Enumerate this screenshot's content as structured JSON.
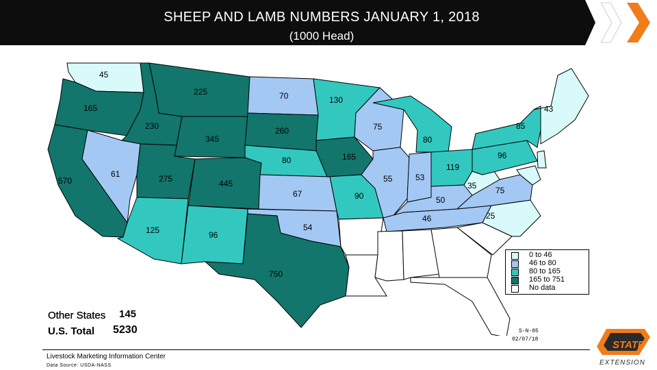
{
  "header": {
    "title": "SHEEP AND LAMB NUMBERS JANUARY 1, 2018",
    "subtitle": "(1000 Head)"
  },
  "map": {
    "colors": {
      "0_to_46": "#d8fafa",
      "46_to_80": "#a4c8f4",
      "80_to_165": "#32c8c0",
      "165_to_751": "#12766c",
      "no_data": "#ffffff"
    },
    "states": [
      {
        "id": "WA",
        "label": "45",
        "cat": "0_to_46"
      },
      {
        "id": "OR",
        "label": "165",
        "cat": "165_to_751"
      },
      {
        "id": "CA",
        "label": "570",
        "cat": "165_to_751"
      },
      {
        "id": "ID",
        "label": "230",
        "cat": "165_to_751"
      },
      {
        "id": "NV",
        "label": "61",
        "cat": "46_to_80"
      },
      {
        "id": "MT",
        "label": "225",
        "cat": "165_to_751"
      },
      {
        "id": "WY",
        "label": "345",
        "cat": "165_to_751"
      },
      {
        "id": "UT",
        "label": "275",
        "cat": "165_to_751"
      },
      {
        "id": "AZ",
        "label": "125",
        "cat": "80_to_165"
      },
      {
        "id": "CO",
        "label": "445",
        "cat": "165_to_751"
      },
      {
        "id": "NM",
        "label": "96",
        "cat": "80_to_165"
      },
      {
        "id": "ND",
        "label": "70",
        "cat": "46_to_80"
      },
      {
        "id": "SD",
        "label": "260",
        "cat": "165_to_751"
      },
      {
        "id": "NE",
        "label": "80",
        "cat": "80_to_165"
      },
      {
        "id": "KS",
        "label": "67",
        "cat": "46_to_80"
      },
      {
        "id": "OK",
        "label": "54",
        "cat": "46_to_80"
      },
      {
        "id": "TX",
        "label": "750",
        "cat": "165_to_751"
      },
      {
        "id": "MN",
        "label": "130",
        "cat": "80_to_165"
      },
      {
        "id": "IA",
        "label": "165",
        "cat": "165_to_751"
      },
      {
        "id": "MO",
        "label": "90",
        "cat": "80_to_165"
      },
      {
        "id": "AR",
        "label": "",
        "cat": "no_data"
      },
      {
        "id": "LA",
        "label": "",
        "cat": "no_data"
      },
      {
        "id": "WI",
        "label": "75",
        "cat": "46_to_80"
      },
      {
        "id": "IL",
        "label": "55",
        "cat": "46_to_80"
      },
      {
        "id": "MI",
        "label": "80",
        "cat": "80_to_165"
      },
      {
        "id": "IN",
        "label": "53",
        "cat": "46_to_80"
      },
      {
        "id": "OH",
        "label": "119",
        "cat": "80_to_165"
      },
      {
        "id": "KY",
        "label": "50",
        "cat": "46_to_80"
      },
      {
        "id": "TN",
        "label": "46",
        "cat": "46_to_80"
      },
      {
        "id": "MS",
        "label": "",
        "cat": "no_data"
      },
      {
        "id": "AL",
        "label": "",
        "cat": "no_data"
      },
      {
        "id": "GA",
        "label": "",
        "cat": "no_data"
      },
      {
        "id": "FL",
        "label": "",
        "cat": "no_data"
      },
      {
        "id": "SC",
        "label": "",
        "cat": "no_data"
      },
      {
        "id": "NC",
        "label": "25",
        "cat": "0_to_46"
      },
      {
        "id": "VA",
        "label": "75",
        "cat": "46_to_80"
      },
      {
        "id": "WV",
        "label": "35",
        "cat": "0_to_46"
      },
      {
        "id": "PA",
        "label": "96",
        "cat": "80_to_165"
      },
      {
        "id": "NY",
        "label": "85",
        "cat": "80_to_165"
      },
      {
        "id": "NE_REGION",
        "label": "43",
        "cat": "0_to_46"
      },
      {
        "id": "NJ",
        "label": "",
        "cat": "0_to_46"
      },
      {
        "id": "MDDE",
        "label": "",
        "cat": "0_to_46"
      }
    ]
  },
  "legend": {
    "items": [
      {
        "label": "0 to 46",
        "cat": "0_to_46"
      },
      {
        "label": "46 to 80",
        "cat": "46_to_80"
      },
      {
        "label": "80 to 165",
        "cat": "80_to_165"
      },
      {
        "label": "165 to 751",
        "cat": "165_to_751"
      },
      {
        "label": "No data",
        "cat": "no_data"
      }
    ]
  },
  "totals": {
    "other_label": "Other States",
    "other_value": "145",
    "us_label": "U.S. Total",
    "us_value": "5230"
  },
  "stamp": {
    "sn": "S-N-05",
    "date": "02/07/18"
  },
  "footer": {
    "center": "Livestock Marketing Information Center",
    "source": "Data Source: USDA-NASS"
  },
  "logo": {
    "top": "STATE",
    "bottom": "EXTENSION",
    "accent": "#f07c1a"
  },
  "nav": {
    "icon": "chevron-right-icon",
    "accent": "#f07c1a"
  }
}
